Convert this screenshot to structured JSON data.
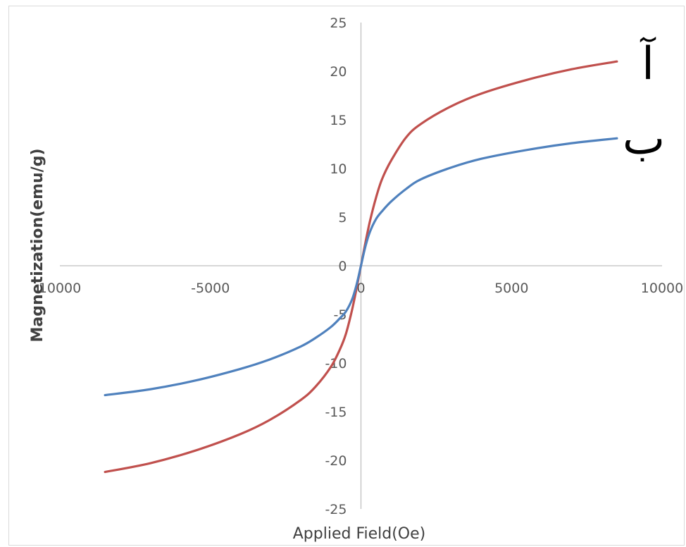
{
  "chart_data": {
    "type": "line",
    "title": "",
    "xlabel": "Applied Field(Oe)",
    "ylabel": "Magnetization(emu/g)",
    "xlim": [
      -10000,
      10000
    ],
    "ylim": [
      -25,
      25
    ],
    "x_ticks": [
      "10000",
      "-5000",
      "0",
      "5000",
      "10000"
    ],
    "y_ticks": [
      "25",
      "20",
      "15",
      "10",
      "5",
      "0",
      "-5",
      "-10",
      "-15",
      "-20",
      "-25"
    ],
    "grid": false,
    "legend": "none",
    "series": [
      {
        "name": "آ",
        "color": "#c0504d",
        "x": [
          -8500,
          -7000,
          -5500,
          -4000,
          -3000,
          -2000,
          -1500,
          -1000,
          -700,
          -500,
          -300,
          -150,
          0,
          150,
          300,
          500,
          700,
          1000,
          1500,
          2000,
          3000,
          4000,
          5500,
          7000,
          8500
        ],
        "y": [
          -21.2,
          -20.3,
          -19.0,
          -17.3,
          -15.8,
          -13.8,
          -12.4,
          -10.4,
          -8.6,
          -7.0,
          -4.6,
          -2.4,
          0,
          2.4,
          4.6,
          7.0,
          8.9,
          10.8,
          13.2,
          14.6,
          16.4,
          17.7,
          19.1,
          20.2,
          21.0
        ]
      },
      {
        "name": "ب",
        "color": "#4f81bd",
        "x": [
          -8500,
          -7000,
          -5500,
          -4000,
          -3000,
          -2000,
          -1500,
          -1000,
          -700,
          -500,
          -300,
          -150,
          0,
          150,
          300,
          500,
          700,
          1000,
          1500,
          2000,
          3000,
          4000,
          5500,
          7000,
          8500
        ],
        "y": [
          -13.3,
          -12.7,
          -11.8,
          -10.6,
          -9.6,
          -8.3,
          -7.4,
          -6.3,
          -5.4,
          -4.7,
          -3.5,
          -2.0,
          0,
          2.0,
          3.5,
          4.8,
          5.6,
          6.6,
          7.9,
          8.9,
          10.1,
          11.0,
          11.9,
          12.6,
          13.1
        ]
      }
    ],
    "annotations": [
      "آ",
      "ب"
    ]
  }
}
